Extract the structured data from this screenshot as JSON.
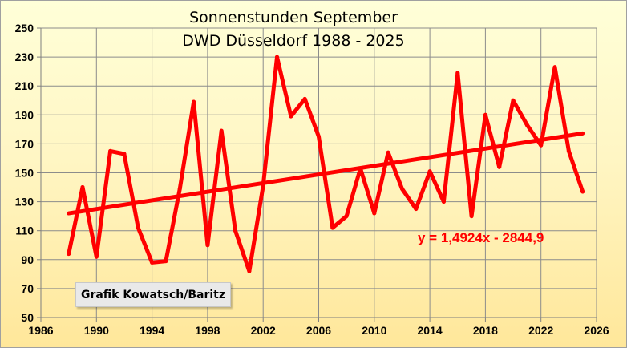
{
  "chart_data": {
    "type": "line",
    "title": "Sonnenstunden September",
    "subtitle": "DWD Düsseldorf 1988 - 2025",
    "xlabel": "",
    "ylabel": "",
    "xlim": [
      1986,
      2026
    ],
    "ylim": [
      50,
      250
    ],
    "x_ticks": [
      1986,
      1990,
      1994,
      1998,
      2002,
      2006,
      2010,
      2014,
      2018,
      2022,
      2026
    ],
    "y_ticks": [
      50,
      70,
      90,
      110,
      130,
      150,
      170,
      190,
      210,
      230,
      250
    ],
    "grid": true,
    "legend": "none",
    "series": [
      {
        "color": "#ff0000",
        "x": [
          1988,
          1989,
          1990,
          1991,
          1992,
          1993,
          1994,
          1995,
          1996,
          1997,
          1998,
          1999,
          2000,
          2001,
          2002,
          2003,
          2004,
          2005,
          2006,
          2007,
          2008,
          2009,
          2010,
          2011,
          2012,
          2013,
          2014,
          2015,
          2016,
          2017,
          2018,
          2019,
          2020,
          2021,
          2022,
          2023,
          2024,
          2025
        ],
        "values": [
          94,
          140,
          92,
          165,
          163,
          112,
          88,
          89,
          139,
          199,
          100,
          179,
          110,
          82,
          141,
          230,
          189,
          201,
          175,
          112,
          120,
          153,
          122,
          164,
          139,
          125,
          151,
          130,
          219,
          120,
          190,
          154,
          200,
          183,
          169,
          223,
          165,
          137
        ]
      }
    ],
    "trendline": {
      "color": "#ff0000",
      "slope": 1.4924,
      "intercept": -2844.9,
      "x_range": [
        1988,
        2025
      ],
      "label": "y = 1,4924x - 2844,9"
    },
    "annotation": "Grafik Kowatsch/Baritz"
  }
}
